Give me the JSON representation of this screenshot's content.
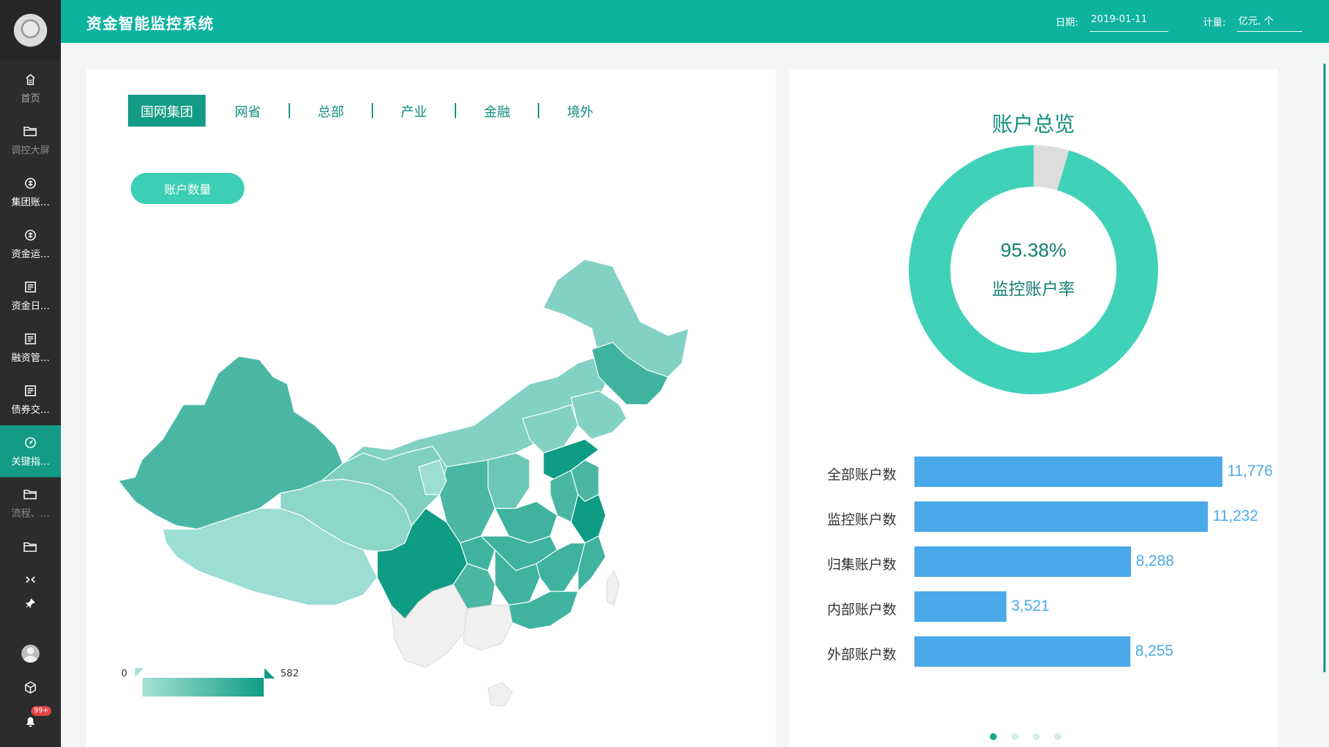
{
  "app": {
    "title": "资金智能监控系统"
  },
  "header": {
    "date_label": "日期:",
    "date_value": "2019-01-11",
    "unit_label": "计量:",
    "unit_value": "亿元, 个"
  },
  "sidebar": {
    "items": [
      {
        "label": "首页",
        "icon": "home-icon"
      },
      {
        "label": "调控大屏",
        "icon": "folder-open-icon"
      },
      {
        "label": "集团账...",
        "icon": "money-exchange-icon"
      },
      {
        "label": "资金运...",
        "icon": "money-exchange-icon"
      },
      {
        "label": "资金日...",
        "icon": "report-icon"
      },
      {
        "label": "融资管...",
        "icon": "report-icon"
      },
      {
        "label": "债券交...",
        "icon": "report-icon"
      },
      {
        "label": "关键指...",
        "icon": "dashboard-icon"
      },
      {
        "label": "流程、...",
        "icon": "folder-icon"
      }
    ],
    "notification_count": "99+"
  },
  "tabs": [
    "国网集团",
    "网省",
    "总部",
    "产业",
    "金融",
    "境外"
  ],
  "active_tab": "国网集团",
  "metric_button": "账户数量",
  "legend": {
    "min": "0",
    "max": "582"
  },
  "overview": {
    "title": "账户总览",
    "percent": "95.38%",
    "percent_label": "监控账户率",
    "monitored_fraction": 0.9538
  },
  "chart_data": {
    "type": "bar",
    "orientation": "horizontal",
    "categories": [
      "全部账户数",
      "监控账户数",
      "归集账户数",
      "内部账户数",
      "外部账户数"
    ],
    "values": [
      11776,
      11232,
      8288,
      3521,
      8255
    ],
    "value_labels": [
      "11,776",
      "11,232",
      "8,288",
      "3,521",
      "8,255"
    ],
    "xlim": [
      0,
      11776
    ]
  },
  "pagination": {
    "count": 4,
    "active": 0
  },
  "colors": {
    "brand": "#0eb3a0",
    "accent": "#139b86",
    "donut": "#40d2b9",
    "donut_rest": "#dddddd",
    "bar": "#4aa9e8"
  }
}
